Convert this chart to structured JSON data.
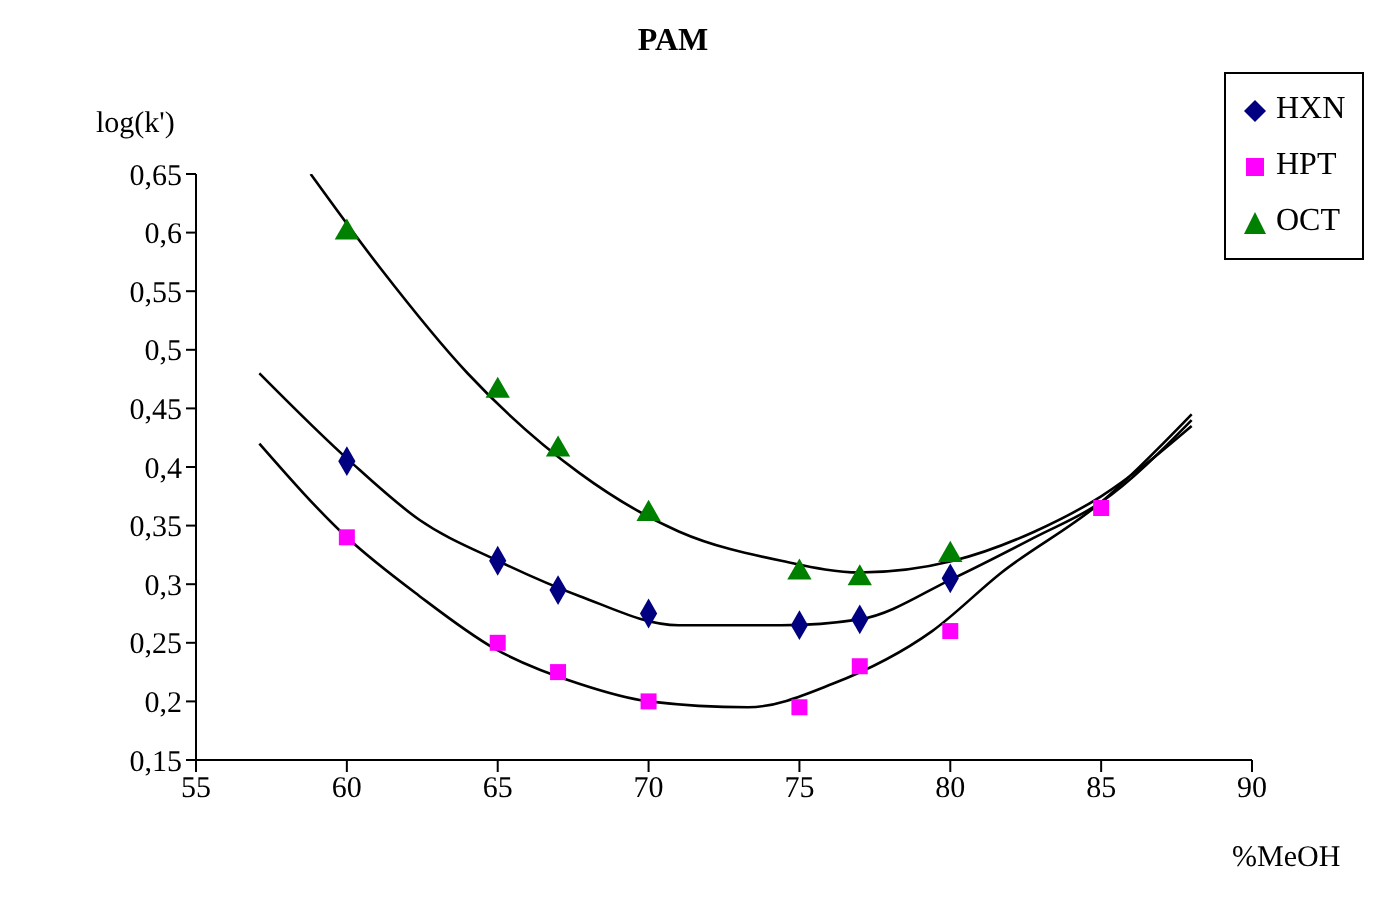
{
  "chart_data": {
    "type": "scatter",
    "title": "PAM",
    "xlabel": "%MeOH",
    "ylabel": "log(k')",
    "series": [
      {
        "name": "HXN",
        "color": "#000080",
        "marker": "diamond",
        "x": [
          60,
          65,
          67,
          70,
          75,
          77,
          80
        ],
        "values": [
          0.405,
          0.32,
          0.295,
          0.275,
          0.265,
          0.27,
          0.305
        ]
      },
      {
        "name": "HPT",
        "color": "#ff00ff",
        "marker": "square",
        "x": [
          60,
          65,
          67,
          70,
          75,
          77,
          80,
          85
        ],
        "values": [
          0.34,
          0.25,
          0.225,
          0.2,
          0.195,
          0.23,
          0.26,
          0.365
        ]
      },
      {
        "name": "OCT",
        "color": "#008000",
        "marker": "triangle",
        "x": [
          60,
          65,
          67,
          70,
          75,
          77,
          80
        ],
        "values": [
          0.6,
          0.465,
          0.415,
          0.36,
          0.31,
          0.305,
          0.325
        ]
      },
      {
        "type": "line",
        "color": "#000000",
        "marker": "none",
        "x": [
          57.1,
          60.1,
          62.4,
          65,
          67.7,
          71,
          74.4,
          77,
          80.1,
          82.8,
          85,
          88
        ],
        "values": [
          0.48,
          0.405,
          0.355,
          0.32,
          0.29,
          0.265,
          0.265,
          0.27,
          0.305,
          0.34,
          0.37,
          0.44
        ]
      },
      {
        "type": "line",
        "color": "#000000",
        "marker": "none",
        "x": [
          57.1,
          60,
          62.4,
          64.9,
          67.7,
          70,
          73.3,
          76.1,
          79.4,
          81.7,
          85,
          88
        ],
        "values": [
          0.42,
          0.34,
          0.29,
          0.245,
          0.215,
          0.2,
          0.195,
          0.215,
          0.26,
          0.31,
          0.37,
          0.445
        ]
      },
      {
        "type": "line",
        "color": "#000000",
        "marker": "none",
        "x": [
          58.8,
          61.1,
          64,
          67.7,
          71,
          74.4,
          77,
          80.1,
          82.8,
          85,
          88
        ],
        "values": [
          0.65,
          0.57,
          0.48,
          0.395,
          0.345,
          0.32,
          0.31,
          0.32,
          0.345,
          0.375,
          0.435
        ]
      }
    ],
    "xlim": [
      55,
      90
    ],
    "xticks": [
      55,
      60,
      65,
      70,
      75,
      80,
      85,
      90
    ],
    "ylim": [
      0.15,
      0.65
    ],
    "yticks": [
      {
        "value": 0.15,
        "label": "0,15"
      },
      {
        "value": 0.2,
        "label": "0,2"
      },
      {
        "value": 0.25,
        "label": "0,25"
      },
      {
        "value": 0.3,
        "label": "0,3"
      },
      {
        "value": 0.35,
        "label": "0,35"
      },
      {
        "value": 0.4,
        "label": "0,4"
      },
      {
        "value": 0.45,
        "label": "0,45"
      },
      {
        "value": 0.5,
        "label": "0,5"
      },
      {
        "value": 0.55,
        "label": "0,55"
      },
      {
        "value": 0.6,
        "label": "0,6"
      },
      {
        "value": 0.65,
        "label": "0,65"
      }
    ],
    "grid": false,
    "legend": "top right"
  }
}
